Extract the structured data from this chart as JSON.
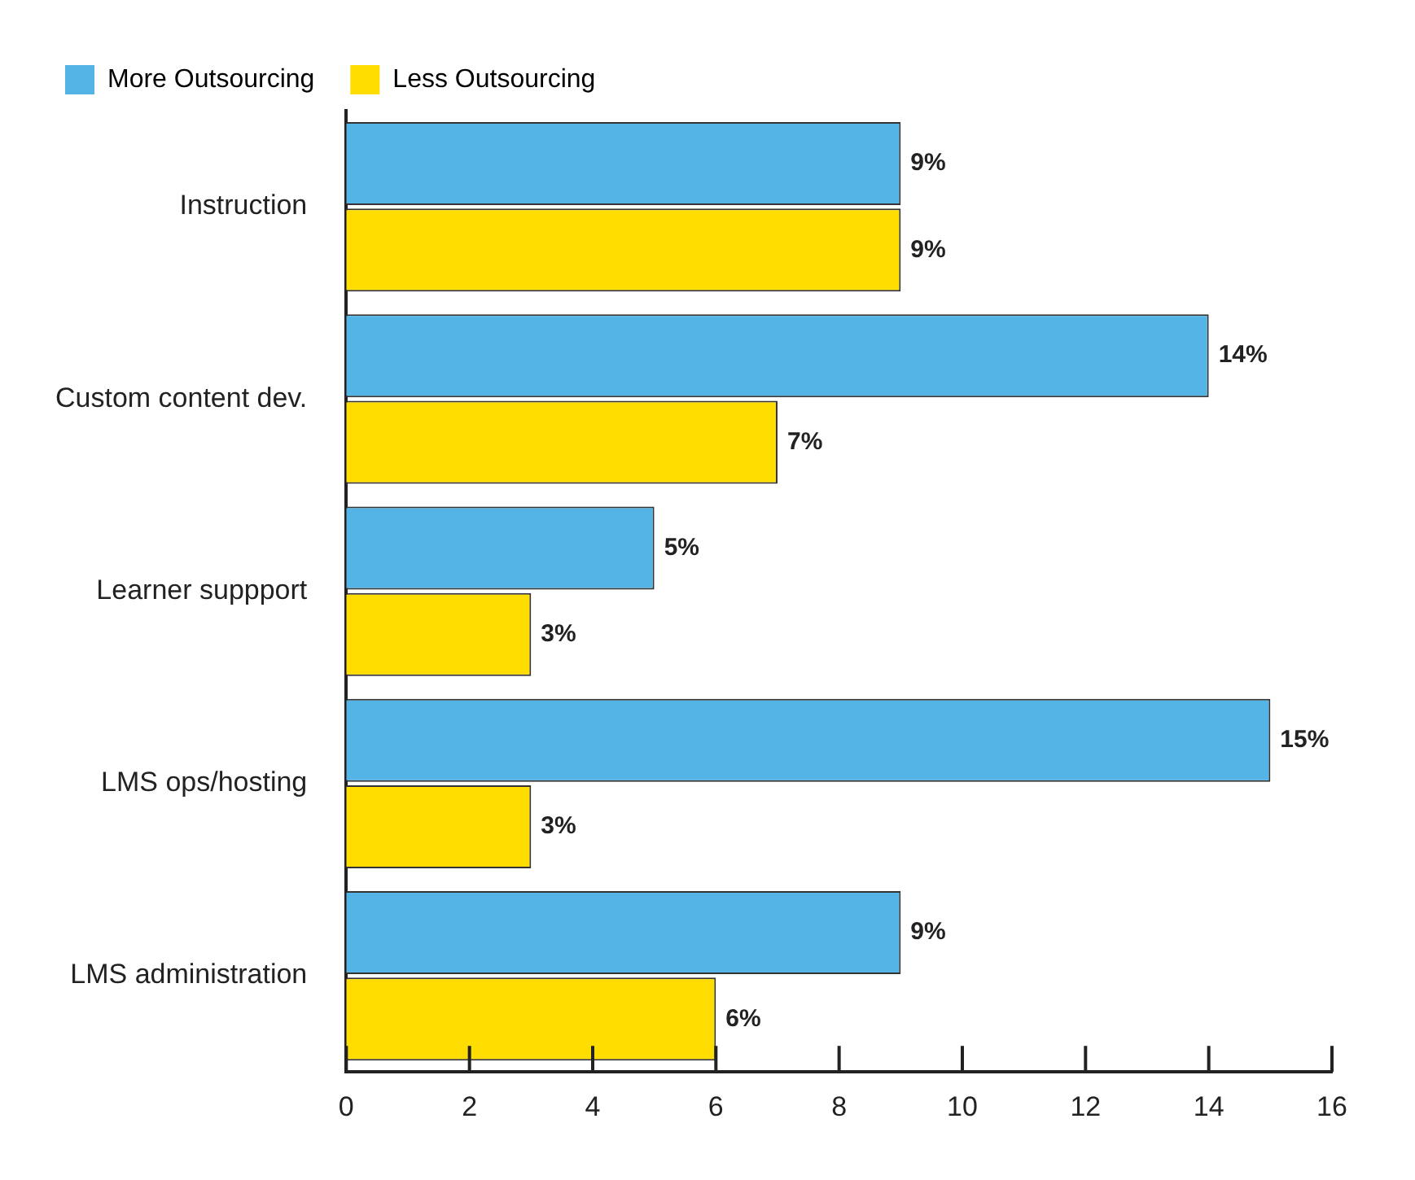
{
  "chart_data": {
    "type": "bar",
    "orientation": "horizontal",
    "categories": [
      "Instruction",
      "Custom content dev.",
      "Learner suppport",
      "LMS ops/hosting",
      "LMS administration"
    ],
    "series": [
      {
        "name": "More Outsourcing",
        "color": "#55b4e6",
        "values": [
          9,
          14,
          5,
          15,
          9
        ],
        "value_labels": [
          "9%",
          "14%",
          "5%",
          "15%",
          "9%"
        ]
      },
      {
        "name": "Less Outsourcing",
        "color": "#ffdd00",
        "values": [
          9,
          7,
          3,
          3,
          6
        ],
        "value_labels": [
          "9%",
          "7%",
          "3%",
          "3%",
          "6%"
        ]
      }
    ],
    "xlim": [
      0,
      16
    ],
    "xticks": [
      0,
      2,
      4,
      6,
      8,
      10,
      12,
      14,
      16
    ],
    "grid": false,
    "legend": "top"
  }
}
